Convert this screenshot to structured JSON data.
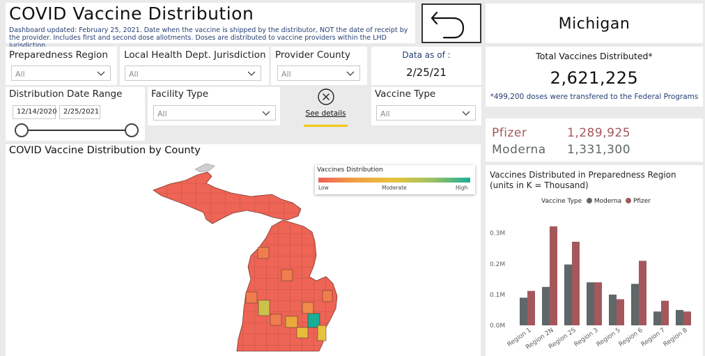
{
  "header": {
    "title": "COVID Vaccine Distribution",
    "subtitle": "Dashboard updated: February 25, 2021. Date when the vaccine is shipped by the distributor, NOT the date of receipt by the provider. Includes first and second dose allotments. Doses are distributed to vaccine providers within the LHD jurisdiction.",
    "state": "Michigan",
    "back_icon": "back-arrow-icon"
  },
  "filters": {
    "preparedness_region": {
      "label": "Preparedness Region",
      "value": "All"
    },
    "lhd_jurisdiction": {
      "label": "Local Health Dept. Jurisdiction",
      "value": "All"
    },
    "provider_county": {
      "label": "Provider County",
      "value": "All"
    },
    "facility_type": {
      "label": "Facility Type",
      "value": "All"
    },
    "vaccine_type": {
      "label": "Vaccine Type",
      "value": "All"
    },
    "date_range": {
      "label": "Distribution Date Range",
      "start": "12/14/2020",
      "end": "2/25/2021"
    },
    "see_details": {
      "label": "See details",
      "icon": "close-circle-icon"
    }
  },
  "data_as_of": {
    "label": "Data as of :",
    "date": "2/25/21"
  },
  "totals": {
    "label": "Total Vaccines Distributed*",
    "value": "2,621,225",
    "note": "*499,200 doses were transfered to the Federal Programs",
    "pfizer_label": "Pfizer",
    "pfizer_value": "1,289,925",
    "moderna_label": "Moderna",
    "moderna_value": "1,331,300"
  },
  "map": {
    "title": "COVID Vaccine Distribution by County",
    "legend_title": "Vaccines Distribution",
    "legend_low": "Low",
    "legend_moderate": "Moderate",
    "legend_high": "High",
    "colors": {
      "low": "#f0605a",
      "moderate": "#e6c33d",
      "high": "#1bae97"
    }
  },
  "chart_data": {
    "type": "bar",
    "title": "Vaccines Distributed in Preparedness Region (units in K = Thousand)",
    "legend_title": "Vaccine Type",
    "legend_position": "top",
    "categories": [
      "Region 1",
      "Region 2N",
      "Region 2S",
      "Region 3",
      "Region 5",
      "Region 6",
      "Region 7",
      "Region 8"
    ],
    "series": [
      {
        "name": "Moderna",
        "color": "#5f6768",
        "values": [
          0.09,
          0.125,
          0.198,
          0.14,
          0.1,
          0.135,
          0.045,
          0.05
        ]
      },
      {
        "name": "Pfizer",
        "color": "#a4585b",
        "values": [
          0.112,
          0.322,
          0.272,
          0.14,
          0.085,
          0.21,
          0.08,
          0.045
        ]
      }
    ],
    "yticks": [
      "0.0M",
      "0.1M",
      "0.2M",
      "0.3M"
    ],
    "ylim": [
      0,
      0.34
    ],
    "grid": false
  }
}
